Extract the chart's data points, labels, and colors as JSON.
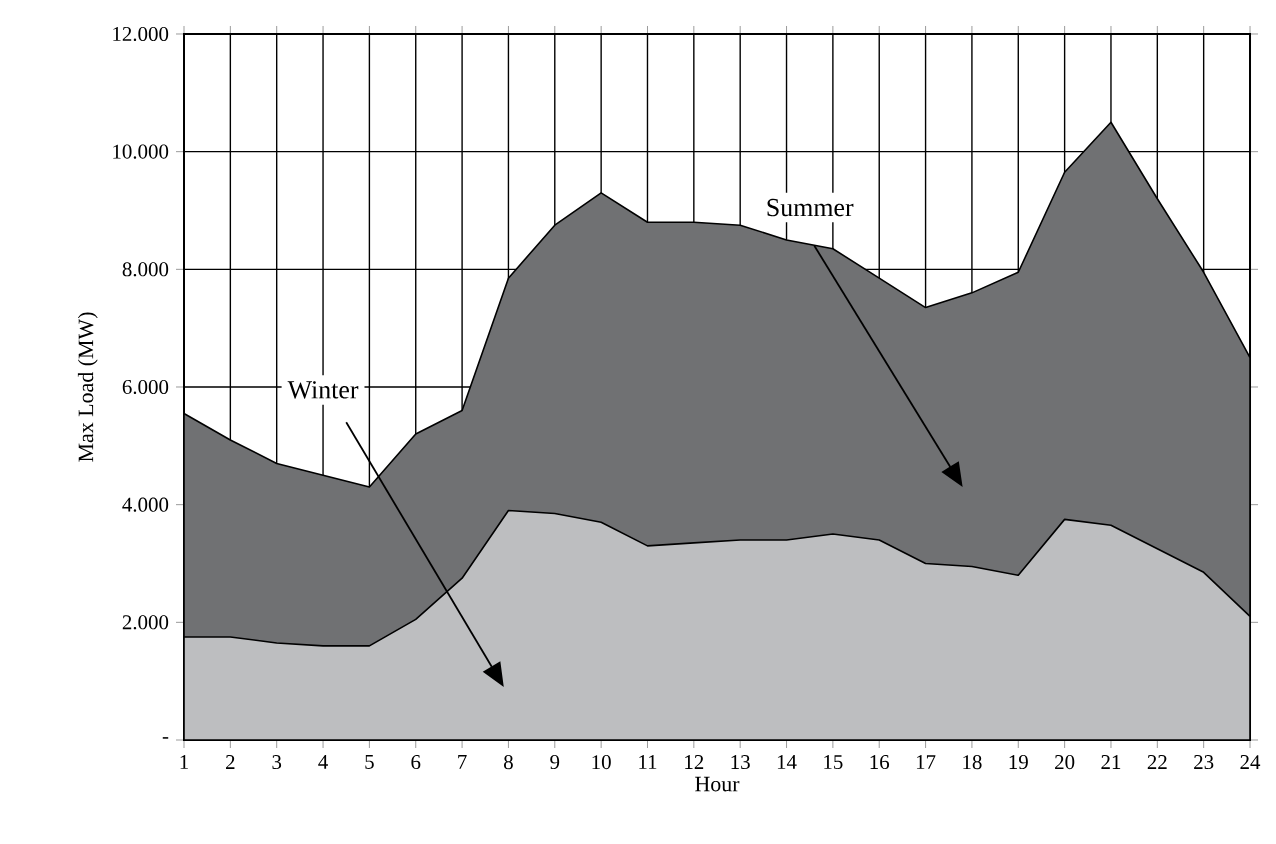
{
  "chart_data": {
    "type": "area",
    "xlabel": "Hour",
    "ylabel": "Max Load (MW)",
    "categories": [
      "1",
      "2",
      "3",
      "4",
      "5",
      "6",
      "7",
      "8",
      "9",
      "10",
      "11",
      "12",
      "13",
      "14",
      "15",
      "16",
      "17",
      "18",
      "19",
      "20",
      "21",
      "22",
      "23",
      "24"
    ],
    "series": [
      {
        "name": "Summer",
        "color": "#707173",
        "values": [
          5550,
          5100,
          4700,
          4500,
          4300,
          5200,
          5600,
          7850,
          8750,
          9300,
          8800,
          8800,
          8750,
          8500,
          8350,
          7850,
          7350,
          7600,
          7950,
          9650,
          10500,
          9200,
          7950,
          6500
        ]
      },
      {
        "name": "Winter",
        "color": "#bdbec0",
        "values": [
          1750,
          1750,
          1650,
          1600,
          1600,
          2050,
          2750,
          3900,
          3850,
          3700,
          3300,
          3350,
          3400,
          3400,
          3500,
          3400,
          3000,
          2950,
          2800,
          3750,
          3650,
          3250,
          2850,
          2100
        ]
      }
    ],
    "ylim": [
      0,
      12000
    ],
    "yticks": [
      {
        "value": 0,
        "label": "-"
      },
      {
        "value": 2000,
        "label": "2.000"
      },
      {
        "value": 4000,
        "label": "4.000"
      },
      {
        "value": 6000,
        "label": "6.000"
      },
      {
        "value": 8000,
        "label": "8.000"
      },
      {
        "value": 10000,
        "label": "10.000"
      },
      {
        "value": 12000,
        "label": "12.000"
      }
    ],
    "grid": true,
    "legend": false
  }
}
